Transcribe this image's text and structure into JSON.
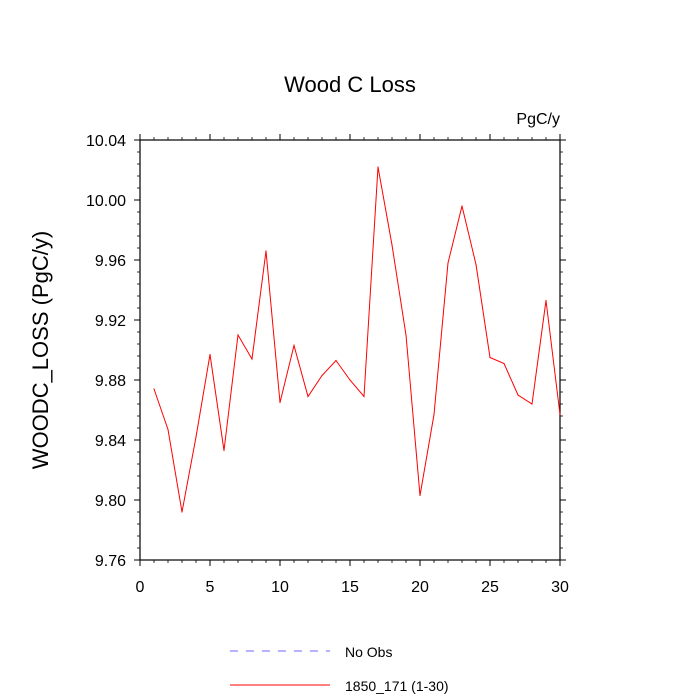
{
  "chart_data": {
    "type": "line",
    "title": "Wood C Loss",
    "units_label": "PgC/y",
    "xlabel": "",
    "ylabel": "WOODC_LOSS  (PgC/y)",
    "xlim": [
      0,
      30
    ],
    "ylim": [
      9.76,
      10.04
    ],
    "x_ticks": [
      0,
      5,
      10,
      15,
      20,
      25,
      30
    ],
    "x_tick_labels": [
      "0",
      "5",
      "10",
      "15",
      "20",
      "25",
      "30"
    ],
    "y_ticks": [
      9.76,
      9.8,
      9.84,
      9.88,
      9.92,
      9.96,
      10.0,
      10.04
    ],
    "y_tick_labels": [
      "9.76",
      "9.80",
      "9.84",
      "9.88",
      "9.92",
      "9.96",
      "10.00",
      "10.04"
    ],
    "grid": false,
    "legend_placement": "bottom-center",
    "series": [
      {
        "name": "1850_171 (1-30)",
        "color": "#ff0000",
        "x": [
          1,
          2,
          3,
          4,
          5,
          6,
          7,
          8,
          9,
          10,
          11,
          12,
          13,
          14,
          15,
          16,
          17,
          18,
          19,
          20,
          21,
          22,
          23,
          24,
          25,
          26,
          27,
          28,
          29,
          30
        ],
        "values": [
          9.874,
          9.847,
          9.792,
          9.842,
          9.897,
          9.833,
          9.91,
          9.894,
          9.966,
          9.865,
          9.903,
          9.869,
          9.883,
          9.893,
          9.88,
          9.869,
          10.022,
          9.97,
          9.91,
          9.803,
          9.857,
          9.958,
          9.996,
          9.957,
          9.895,
          9.891,
          9.87,
          9.864,
          9.933,
          9.857
        ]
      }
    ],
    "legend": [
      {
        "label": "No Obs",
        "color": "#6a6aff",
        "style": "dashed"
      },
      {
        "label": "1850_171 (1-30)",
        "color": "#ff0000",
        "style": "solid"
      }
    ]
  }
}
